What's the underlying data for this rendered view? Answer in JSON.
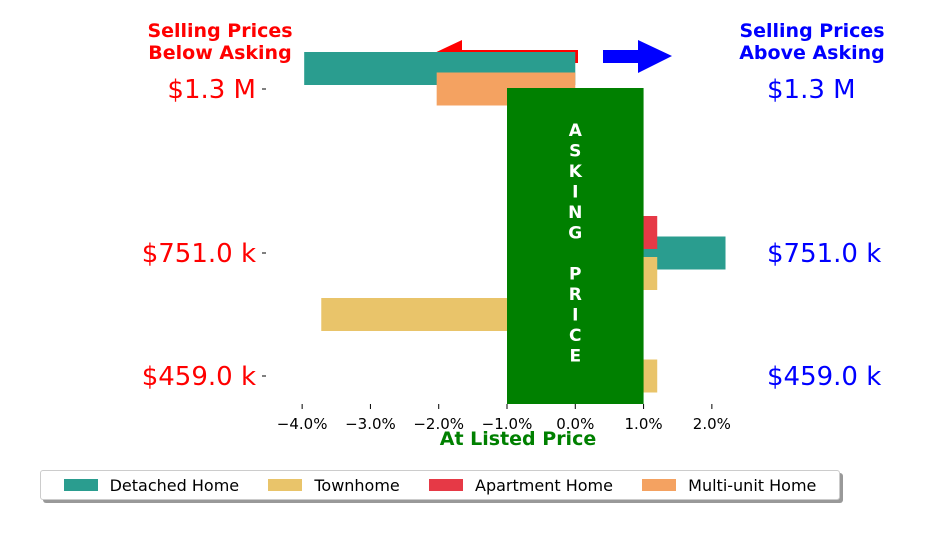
{
  "header_left": {
    "line1": "Selling Prices",
    "line2": "Below Asking",
    "color": "#ff0000"
  },
  "header_right": {
    "line1": "Selling Prices",
    "line2": "Above Asking",
    "color": "#0000ff"
  },
  "asking_box": {
    "letters": [
      "A",
      "S",
      "K",
      "I",
      "N",
      "G",
      "",
      "P",
      "R",
      "I",
      "C",
      "E"
    ],
    "color": "#008000"
  },
  "chart_data": {
    "type": "bar",
    "orientation": "horizontal",
    "xlabel": "At Listed Price",
    "xlim": [
      -4.5,
      2.5
    ],
    "x_ticks": [
      -4,
      -3,
      -2,
      -1,
      0,
      1,
      2
    ],
    "x_tick_labels": [
      "−4.0%",
      "−3.0%",
      "−2.0%",
      "−1.0%",
      "0.0%",
      "1.0%",
      "2.0%"
    ],
    "price_levels": [
      "$1.3 M",
      "$751.0 k",
      "$459.0 k"
    ],
    "series": [
      {
        "name": "Detached Home",
        "color": "#2a9d8f",
        "bars": [
          {
            "price": 0,
            "offset": -0.5,
            "value": -3.97
          },
          {
            "price": 1,
            "offset": 0,
            "value": 2.2
          }
        ]
      },
      {
        "name": "Townhome",
        "color": "#e9c46a",
        "bars": [
          {
            "price": 1,
            "offset": 0.5,
            "value": 1.2
          },
          {
            "price": 1,
            "offset": 1.5,
            "value": -3.72
          },
          {
            "price": 2,
            "offset": 0,
            "value": 1.2
          }
        ]
      },
      {
        "name": "Apartment Home",
        "color": "#e63946",
        "bars": [
          {
            "price": 1,
            "offset": -0.5,
            "value": 1.2
          }
        ]
      },
      {
        "name": "Multi-unit Home",
        "color": "#f4a261",
        "bars": [
          {
            "price": 0,
            "offset": 0,
            "value": -2.03
          }
        ]
      }
    ]
  },
  "legend_entries": [
    {
      "label": "Detached Home",
      "color": "#2a9d8f"
    },
    {
      "label": "Townhome",
      "color": "#e9c46a"
    },
    {
      "label": "Apartment Home",
      "color": "#e63946"
    },
    {
      "label": "Multi-unit Home",
      "color": "#f4a261"
    }
  ]
}
